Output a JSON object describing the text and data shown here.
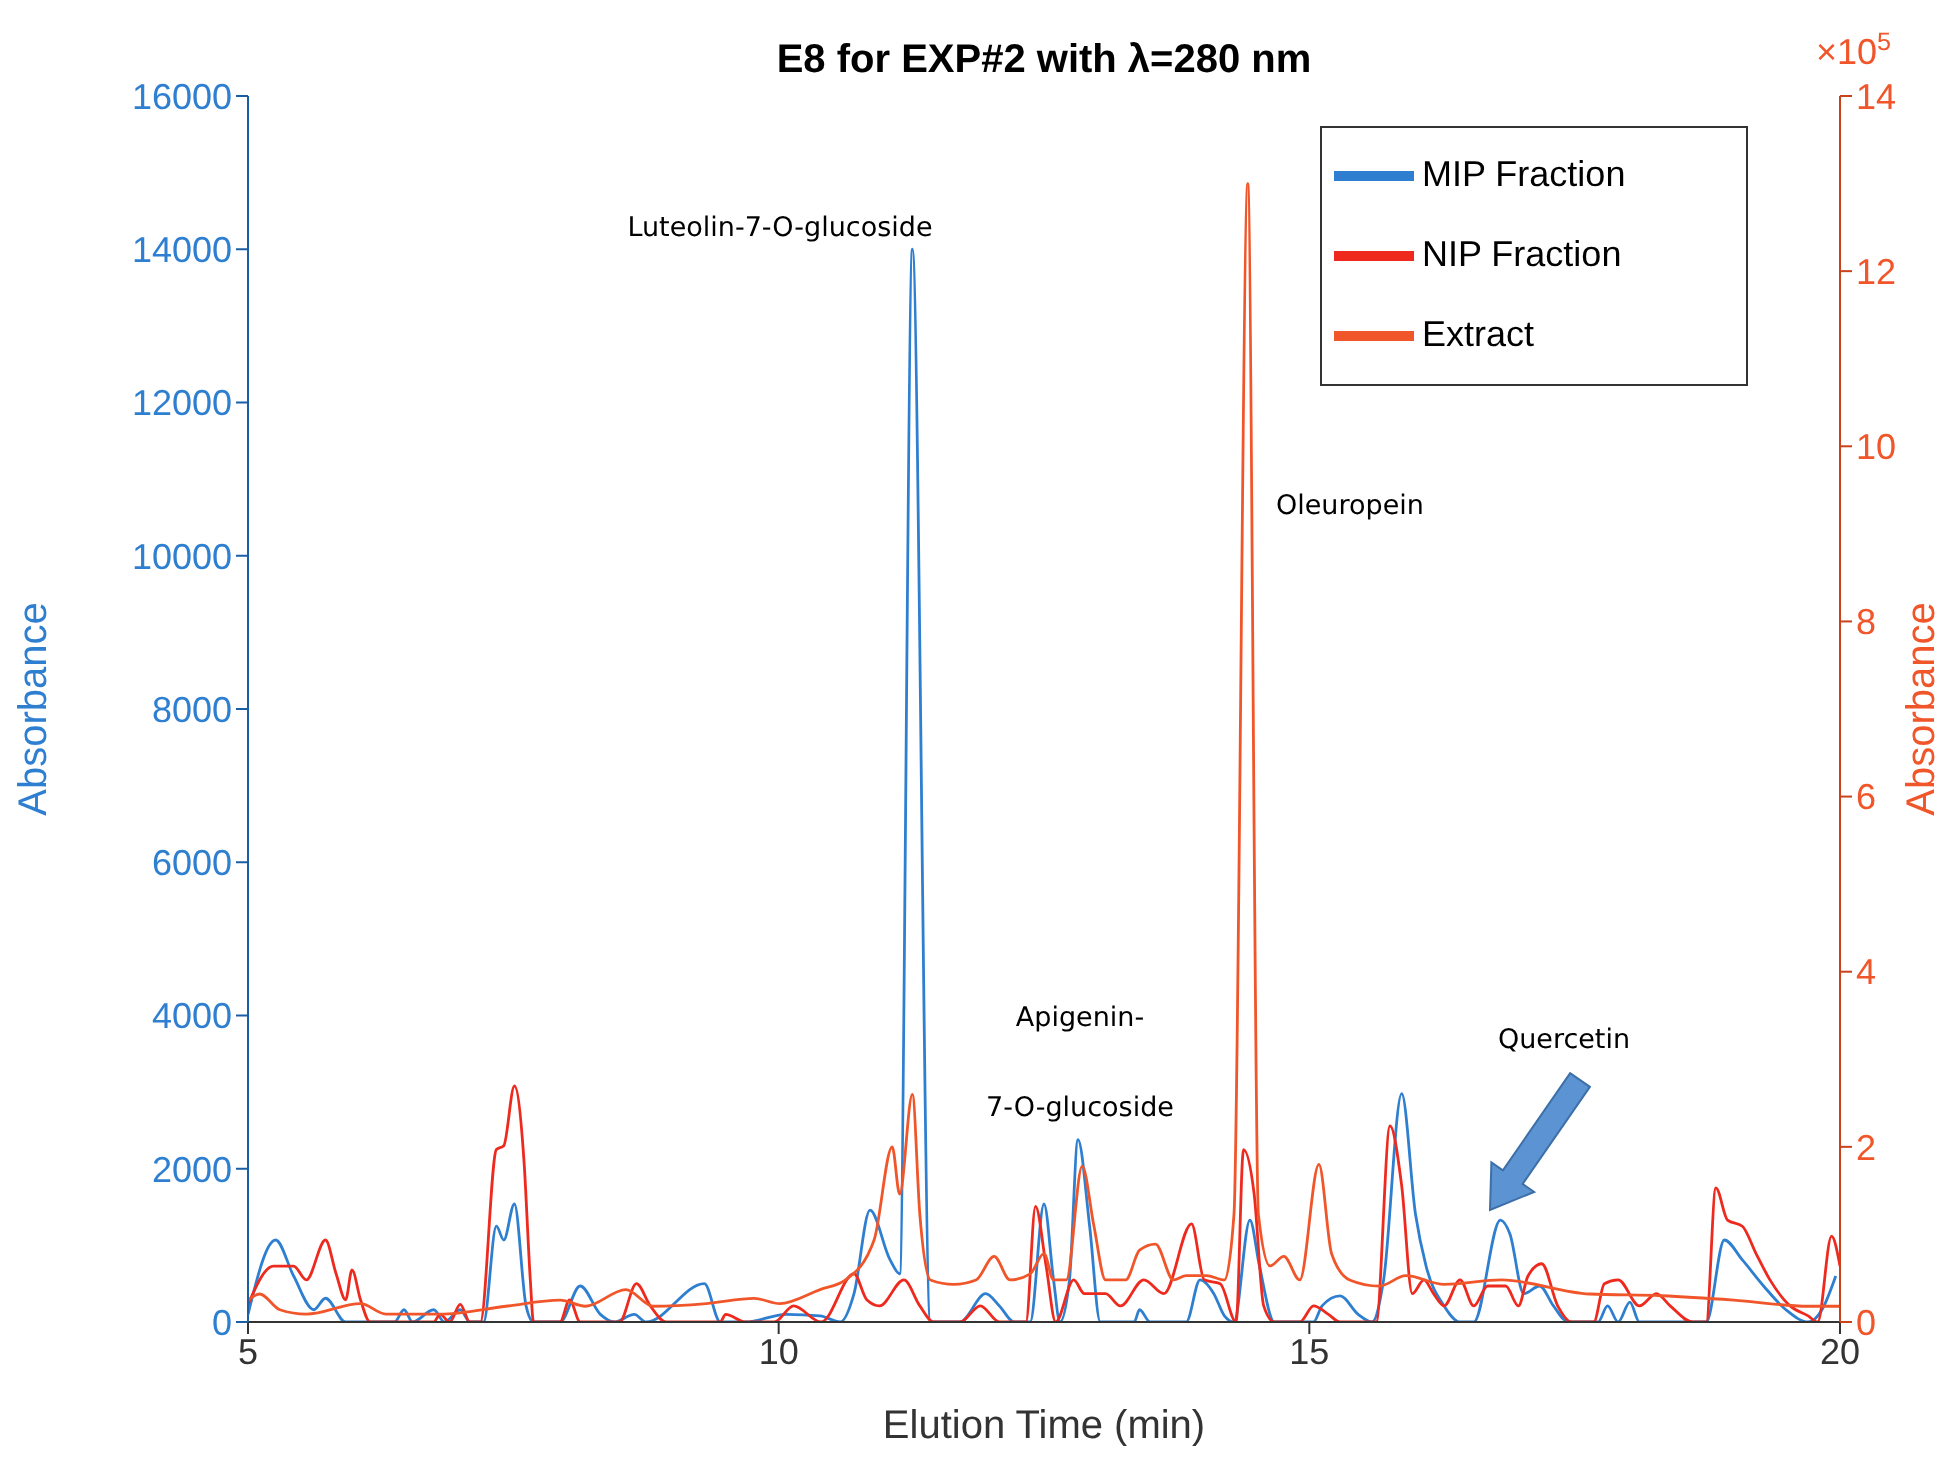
{
  "chart_data": {
    "type": "line",
    "title": "E8 for EXP#2 with λ=280 nm",
    "xlabel": "Elution Time (min)",
    "ylabel": "Absorbance",
    "y2label": "Absorbance",
    "xlim": [
      5,
      20
    ],
    "xticks": [
      5,
      10,
      15,
      20
    ],
    "ylim": [
      0,
      16000
    ],
    "yticks": [
      0,
      2000,
      4000,
      6000,
      8000,
      10000,
      12000,
      14000,
      16000
    ],
    "y2lim": [
      0,
      14
    ],
    "y2ticks": [
      0,
      2,
      4,
      6,
      8,
      10,
      12,
      14
    ],
    "legend": "top right",
    "annotations": [
      "Luteolin-7-O-glucoside",
      "Apigenin-",
      "7-O-glucoside",
      "Quercetin",
      "Oleuropein",
      "×10$^{5}$"
    ],
    "series": [
      {
        "name": "MIP Fraction",
        "color": "#2f7fd0",
        "x": [
          5.0,
          5.26,
          5.43,
          5.62,
          5.73,
          5.92,
          6.38,
          6.47,
          6.55,
          6.75,
          6.85,
          7.0,
          7.09,
          7.22,
          7.34,
          7.41,
          7.51,
          7.62,
          7.69,
          7.94,
          8.13,
          8.32,
          8.45,
          8.64,
          8.75,
          9.3,
          9.45,
          9.69,
          10.07,
          10.39,
          10.58,
          10.71,
          10.86,
          11.05,
          11.14,
          11.26,
          11.43,
          11.71,
          11.95,
          12.08,
          12.22,
          12.37,
          12.5,
          12.59,
          12.65,
          12.74,
          12.82,
          12.93,
          13.03,
          13.35,
          13.4,
          13.5,
          13.84,
          13.97,
          14.1,
          14.2,
          14.29,
          14.44,
          14.53,
          14.67,
          15.04,
          15.12,
          15.29,
          15.46,
          15.59,
          15.7,
          15.87,
          16.0,
          16.1,
          16.27,
          16.42,
          16.55,
          16.8,
          16.89,
          17.02,
          17.17,
          17.3,
          17.44,
          17.72,
          17.81,
          17.91,
          18.02,
          18.11,
          18.74,
          18.91,
          19.08,
          19.28,
          19.49,
          19.7,
          19.83,
          19.96
        ],
        "values": [
          100,
          1070,
          600,
          160,
          310,
          0,
          0,
          160,
          0,
          160,
          0,
          160,
          0,
          0,
          1250,
          1070,
          1540,
          210,
          0,
          0,
          470,
          100,
          0,
          100,
          0,
          500,
          0,
          0,
          100,
          80,
          0,
          370,
          1460,
          810,
          630,
          14000,
          0,
          0,
          370,
          210,
          0,
          0,
          1540,
          550,
          0,
          550,
          2380,
          1250,
          0,
          0,
          160,
          0,
          0,
          550,
          370,
          80,
          0,
          1330,
          730,
          0,
          0,
          210,
          340,
          100,
          0,
          550,
          2980,
          1410,
          730,
          210,
          0,
          0,
          1330,
          1150,
          370,
          470,
          210,
          0,
          0,
          210,
          0,
          260,
          0,
          0,
          1070,
          810,
          470,
          160,
          0,
          160,
          600
        ]
      },
      {
        "name": "NIP Fraction",
        "color": "#ee2a1e",
        "x": [
          5.0,
          5.24,
          5.43,
          5.55,
          5.73,
          5.83,
          5.92,
          5.98,
          6.06,
          6.15,
          6.75,
          6.81,
          6.9,
          7.0,
          7.09,
          7.19,
          7.34,
          7.41,
          7.51,
          7.6,
          7.66,
          7.69,
          7.94,
          8.03,
          8.13,
          8.5,
          8.66,
          8.79,
          8.94,
          9.45,
          9.5,
          9.69,
          9.96,
          10.14,
          10.4,
          10.71,
          10.83,
          10.95,
          11.18,
          11.33,
          11.46,
          11.71,
          11.9,
          12.08,
          12.33,
          12.42,
          12.52,
          12.61,
          12.78,
          12.88,
          13.08,
          13.22,
          13.44,
          13.63,
          13.89,
          14.01,
          14.16,
          14.31,
          14.38,
          14.48,
          14.57,
          14.67,
          14.91,
          15.04,
          15.18,
          15.29,
          15.63,
          15.76,
          15.87,
          15.97,
          16.08,
          16.17,
          16.27,
          16.42,
          16.55,
          16.68,
          16.85,
          16.97,
          17.06,
          17.19,
          17.34,
          17.47,
          17.68,
          17.78,
          17.91,
          18.11,
          18.27,
          18.4,
          18.61,
          18.74,
          18.83,
          18.94,
          19.08,
          19.21,
          19.34,
          19.53,
          19.7,
          19.79,
          19.92,
          20.0
        ],
        "values": [
          230,
          730,
          730,
          550,
          1070,
          630,
          290,
          680,
          290,
          0,
          0,
          100,
          0,
          230,
          0,
          0,
          2250,
          2300,
          3080,
          2110,
          550,
          0,
          0,
          290,
          0,
          0,
          500,
          210,
          0,
          0,
          100,
          0,
          0,
          210,
          0,
          630,
          290,
          210,
          550,
          210,
          0,
          0,
          210,
          0,
          0,
          1510,
          730,
          0,
          550,
          370,
          370,
          210,
          550,
          370,
          1280,
          550,
          500,
          0,
          2250,
          1670,
          210,
          0,
          0,
          210,
          100,
          0,
          0,
          2560,
          1780,
          370,
          550,
          370,
          210,
          550,
          210,
          470,
          470,
          210,
          600,
          760,
          210,
          0,
          0,
          500,
          550,
          210,
          370,
          210,
          0,
          0,
          1750,
          1330,
          1250,
          890,
          550,
          210,
          80,
          0,
          1120,
          730
        ]
      },
      {
        "name": "Extract",
        "color": "#f0562a",
        "axis": "y2",
        "x": [
          5.0,
          5.11,
          5.3,
          5.55,
          6.06,
          6.3,
          6.81,
          7.43,
          7.94,
          8.18,
          8.56,
          8.82,
          9.32,
          9.77,
          10.01,
          10.39,
          10.63,
          10.9,
          11.07,
          11.14,
          11.26,
          11.33,
          11.43,
          11.65,
          11.86,
          12.03,
          12.18,
          12.37,
          12.5,
          12.59,
          12.71,
          12.86,
          12.97,
          13.08,
          13.27,
          13.4,
          13.55,
          13.72,
          13.84,
          14.03,
          14.2,
          14.29,
          14.42,
          14.52,
          14.63,
          14.76,
          14.91,
          15.09,
          15.21,
          15.38,
          15.66,
          15.91,
          16.27,
          16.81,
          17.64,
          18.32,
          19.0,
          19.7,
          20.0
        ],
        "values": [
          0.25,
          0.32,
          0.14,
          0.09,
          0.21,
          0.09,
          0.09,
          0.18,
          0.25,
          0.18,
          0.37,
          0.18,
          0.21,
          0.27,
          0.21,
          0.37,
          0.48,
          0.94,
          2.0,
          1.46,
          2.6,
          1.23,
          0.48,
          0.43,
          0.48,
          0.75,
          0.48,
          0.55,
          0.78,
          0.48,
          0.48,
          1.78,
          1.1,
          0.48,
          0.48,
          0.82,
          0.89,
          0.48,
          0.53,
          0.53,
          0.48,
          1.23,
          13.0,
          1.23,
          0.64,
          0.75,
          0.48,
          1.8,
          0.78,
          0.48,
          0.41,
          0.53,
          0.43,
          0.48,
          0.32,
          0.3,
          0.25,
          0.18,
          0.18
        ]
      }
    ]
  }
}
